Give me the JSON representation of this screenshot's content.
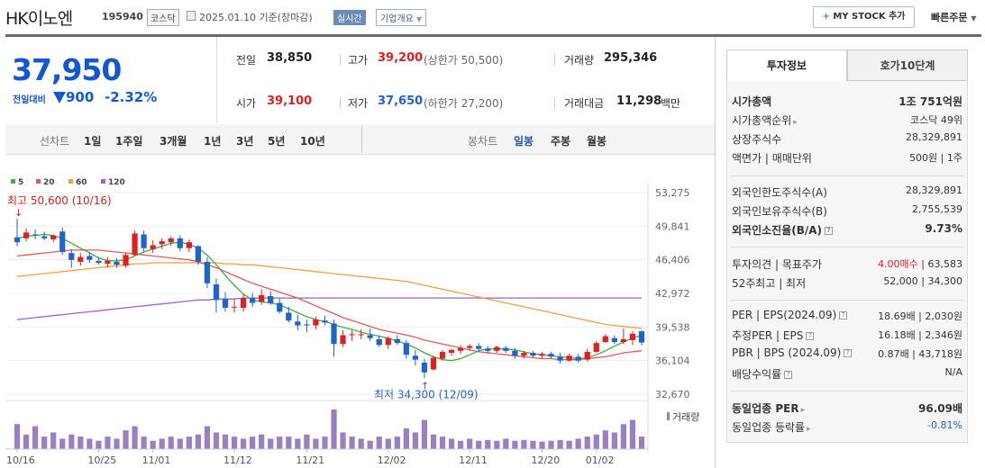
{
  "header": {
    "name": "HK이노엔",
    "code": "195940",
    "market": "코스닥",
    "date": "2025.01.10 기준(장마감)",
    "realtime_label": "실시간",
    "company_label": "기업개요",
    "mystock_label": "MY STOCK 추가",
    "quick_order_label": "빠른주문"
  },
  "price": {
    "current": "37,950",
    "change_label": "전일대비",
    "change": "900",
    "change_pct": "-2.32%",
    "direction": "down"
  },
  "stats": {
    "prev_label": "전일",
    "prev_value": "38,850",
    "high_label": "고가",
    "high_value": "39,200",
    "upper_limit": "(상한가 50,500)",
    "volume_label": "거래량",
    "volume_value": "295,346",
    "open_label": "시가",
    "open_value": "39,100",
    "low_label": "저가",
    "low_value": "37,650",
    "lower_limit": "(하한가 27,200)",
    "amount_label": "거래대금",
    "amount_value": "11,298",
    "amount_unit": "백만"
  },
  "period_bar": {
    "line_chart_label": "선차트",
    "line_periods": [
      "1일",
      "1주일",
      "3개월",
      "1년",
      "3년",
      "5년",
      "10년"
    ],
    "candle_chart_label": "봉차트",
    "candle_periods": [
      "일봉",
      "주봉",
      "월봉"
    ],
    "selected_candle": "일봉"
  },
  "colors": {
    "up": "#e02020",
    "down": "#1f62d0",
    "ma5": "#3fae3f",
    "ma20": "#e25a5a",
    "ma60": "#f0a040",
    "ma120": "#9a64c8",
    "volume": "#9b7fc3"
  },
  "chart_data": {
    "type": "candlestick",
    "legend": [
      "5",
      "20",
      "60",
      "120"
    ],
    "y_ticks": [
      "53,275",
      "49,841",
      "46,406",
      "42,972",
      "39,538",
      "36,104",
      "32,670"
    ],
    "ylim": [
      32670,
      53275
    ],
    "x_ticks": [
      "10/16",
      "10/25",
      "11/01",
      "11/12",
      "11/21",
      "12/02",
      "12/11",
      "12/20",
      "01/02"
    ],
    "max_annotation": "최고 50,600 (10/16)",
    "min_annotation": "최저 34,300 (12/09)",
    "volume_label": "거래량",
    "candles": [
      {
        "o": 48700,
        "h": 50600,
        "l": 47800,
        "c": 48200
      },
      {
        "o": 48600,
        "h": 49600,
        "l": 48300,
        "c": 49200
      },
      {
        "o": 49000,
        "h": 49500,
        "l": 48500,
        "c": 48900
      },
      {
        "o": 48800,
        "h": 49300,
        "l": 48400,
        "c": 48600
      },
      {
        "o": 48500,
        "h": 49000,
        "l": 48200,
        "c": 48900
      },
      {
        "o": 49300,
        "h": 49700,
        "l": 46900,
        "c": 47200
      },
      {
        "o": 47100,
        "h": 47500,
        "l": 45600,
        "c": 46400
      },
      {
        "o": 46200,
        "h": 47100,
        "l": 45800,
        "c": 46700
      },
      {
        "o": 46800,
        "h": 47200,
        "l": 46100,
        "c": 46400
      },
      {
        "o": 46300,
        "h": 46700,
        "l": 45900,
        "c": 46100
      },
      {
        "o": 46000,
        "h": 46700,
        "l": 45600,
        "c": 46300
      },
      {
        "o": 46200,
        "h": 46600,
        "l": 45600,
        "c": 45900
      },
      {
        "o": 45800,
        "h": 47100,
        "l": 45600,
        "c": 46900
      },
      {
        "o": 46900,
        "h": 49400,
        "l": 46800,
        "c": 49100
      },
      {
        "o": 49000,
        "h": 49400,
        "l": 47200,
        "c": 47600
      },
      {
        "o": 47500,
        "h": 48400,
        "l": 47100,
        "c": 47900
      },
      {
        "o": 48000,
        "h": 48600,
        "l": 47500,
        "c": 48300
      },
      {
        "o": 48200,
        "h": 48800,
        "l": 47800,
        "c": 48600
      },
      {
        "o": 48600,
        "h": 48900,
        "l": 47300,
        "c": 47600
      },
      {
        "o": 47600,
        "h": 48500,
        "l": 47200,
        "c": 48200
      },
      {
        "o": 47800,
        "h": 47900,
        "l": 45900,
        "c": 46200
      },
      {
        "o": 46200,
        "h": 46700,
        "l": 43500,
        "c": 44000
      },
      {
        "o": 43900,
        "h": 44500,
        "l": 41000,
        "c": 42300
      },
      {
        "o": 42400,
        "h": 43100,
        "l": 41100,
        "c": 41500
      },
      {
        "o": 41600,
        "h": 42400,
        "l": 41000,
        "c": 41600
      },
      {
        "o": 41500,
        "h": 42900,
        "l": 41100,
        "c": 42500
      },
      {
        "o": 42500,
        "h": 43000,
        "l": 41600,
        "c": 42000
      },
      {
        "o": 42100,
        "h": 43400,
        "l": 41800,
        "c": 42800
      },
      {
        "o": 42700,
        "h": 43200,
        "l": 41800,
        "c": 42000
      },
      {
        "o": 42000,
        "h": 42500,
        "l": 40900,
        "c": 41100
      },
      {
        "o": 41000,
        "h": 41600,
        "l": 40000,
        "c": 40200
      },
      {
        "o": 40100,
        "h": 40800,
        "l": 39200,
        "c": 39700
      },
      {
        "o": 39800,
        "h": 40300,
        "l": 39000,
        "c": 39700
      },
      {
        "o": 39700,
        "h": 40600,
        "l": 39300,
        "c": 40300
      },
      {
        "o": 40200,
        "h": 40700,
        "l": 39700,
        "c": 40000
      },
      {
        "o": 39900,
        "h": 40300,
        "l": 36500,
        "c": 37800
      },
      {
        "o": 37800,
        "h": 39200,
        "l": 37500,
        "c": 38700
      },
      {
        "o": 38700,
        "h": 39200,
        "l": 38100,
        "c": 38800
      },
      {
        "o": 38700,
        "h": 39300,
        "l": 38300,
        "c": 38800
      },
      {
        "o": 38700,
        "h": 39400,
        "l": 38100,
        "c": 38400
      },
      {
        "o": 38300,
        "h": 38700,
        "l": 37500,
        "c": 37700
      },
      {
        "o": 37700,
        "h": 38600,
        "l": 37300,
        "c": 38400
      },
      {
        "o": 38300,
        "h": 38700,
        "l": 37700,
        "c": 37900
      },
      {
        "o": 37900,
        "h": 38200,
        "l": 36300,
        "c": 36700
      },
      {
        "o": 36600,
        "h": 37200,
        "l": 35600,
        "c": 36200
      },
      {
        "o": 35900,
        "h": 36300,
        "l": 34300,
        "c": 34900
      },
      {
        "o": 35200,
        "h": 36600,
        "l": 35100,
        "c": 36400
      },
      {
        "o": 36300,
        "h": 37200,
        "l": 36100,
        "c": 37000
      },
      {
        "o": 36900,
        "h": 37300,
        "l": 36600,
        "c": 37200
      },
      {
        "o": 37100,
        "h": 37700,
        "l": 36800,
        "c": 37400
      },
      {
        "o": 37400,
        "h": 37800,
        "l": 37100,
        "c": 37600
      },
      {
        "o": 37600,
        "h": 37900,
        "l": 37000,
        "c": 37300
      },
      {
        "o": 37300,
        "h": 37600,
        "l": 36800,
        "c": 37100
      },
      {
        "o": 37100,
        "h": 37600,
        "l": 36900,
        "c": 37500
      },
      {
        "o": 37400,
        "h": 37600,
        "l": 36900,
        "c": 37100
      },
      {
        "o": 37100,
        "h": 37400,
        "l": 36300,
        "c": 36600
      },
      {
        "o": 36600,
        "h": 37100,
        "l": 36300,
        "c": 36900
      },
      {
        "o": 36900,
        "h": 37100,
        "l": 36400,
        "c": 36600
      },
      {
        "o": 36600,
        "h": 37000,
        "l": 36300,
        "c": 36800
      },
      {
        "o": 36800,
        "h": 37000,
        "l": 36300,
        "c": 36500
      },
      {
        "o": 36500,
        "h": 36900,
        "l": 35800,
        "c": 36100
      },
      {
        "o": 36100,
        "h": 36800,
        "l": 36000,
        "c": 36600
      },
      {
        "o": 36500,
        "h": 36800,
        "l": 35900,
        "c": 36100
      },
      {
        "o": 36200,
        "h": 37300,
        "l": 36000,
        "c": 37000
      },
      {
        "o": 37000,
        "h": 38100,
        "l": 36900,
        "c": 37900
      },
      {
        "o": 38000,
        "h": 38800,
        "l": 37900,
        "c": 38600
      },
      {
        "o": 38400,
        "h": 38700,
        "l": 37800,
        "c": 38000
      },
      {
        "o": 38000,
        "h": 39400,
        "l": 37800,
        "c": 38300
      },
      {
        "o": 38200,
        "h": 39100,
        "l": 37700,
        "c": 38850
      },
      {
        "o": 39100,
        "h": 39200,
        "l": 37650,
        "c": 37950
      }
    ],
    "ma5": [
      48600,
      48800,
      48900,
      49000,
      48900,
      48600,
      48100,
      47600,
      47100,
      46600,
      46300,
      46300,
      46400,
      46800,
      47200,
      47500,
      47800,
      48100,
      48200,
      48000,
      47600,
      46900,
      45900,
      44800,
      43800,
      42900,
      42300,
      42100,
      42000,
      41800,
      41400,
      41000,
      40600,
      40300,
      40100,
      39800,
      39500,
      39300,
      39000,
      38800,
      38600,
      38400,
      38100,
      37800,
      37400,
      36900,
      36500,
      36200,
      36100,
      36300,
      36700,
      37100,
      37300,
      37300,
      37300,
      37200,
      37000,
      36800,
      36700,
      36600,
      36500,
      36400,
      36300,
      36400,
      36700,
      37100,
      37600,
      38000,
      38400,
      38700
    ],
    "ma20": [
      46800,
      46900,
      47000,
      47100,
      47200,
      47300,
      47400,
      47400,
      47400,
      47400,
      47300,
      47200,
      47100,
      47000,
      46900,
      46800,
      46700,
      46600,
      46500,
      46400,
      46200,
      45900,
      45600,
      45200,
      44800,
      44400,
      44000,
      43700,
      43400,
      43100,
      42800,
      42500,
      42100,
      41700,
      41300,
      40900,
      40500,
      40200,
      39900,
      39600,
      39300,
      39100,
      38900,
      38700,
      38500,
      38200,
      38000,
      37800,
      37600,
      37400,
      37200,
      37000,
      36900,
      36800,
      36700,
      36600,
      36500,
      36400,
      36300,
      36300,
      36200,
      36200,
      36200,
      36300,
      36400,
      36500,
      36700,
      36900,
      37000,
      37100
    ],
    "ma60": [
      44700,
      44800,
      44900,
      45000,
      45100,
      45200,
      45300,
      45400,
      45500,
      45600,
      45700,
      45800,
      45900,
      46000,
      46000,
      46100,
      46100,
      46100,
      46100,
      46100,
      46100,
      46100,
      46100,
      46000,
      46000,
      45900,
      45900,
      45800,
      45700,
      45600,
      45500,
      45400,
      45300,
      45200,
      45100,
      45000,
      44900,
      44800,
      44700,
      44600,
      44500,
      44400,
      44300,
      44200,
      44000,
      43800,
      43600,
      43400,
      43200,
      43000,
      42800,
      42600,
      42400,
      42200,
      42000,
      41800,
      41600,
      41400,
      41200,
      41000,
      40800,
      40600,
      40400,
      40200,
      40000,
      39800,
      39700,
      39600,
      39500,
      39400
    ],
    "ma120": [
      40300,
      40400,
      40500,
      40600,
      40700,
      40800,
      40900,
      41000,
      41100,
      41200,
      41300,
      41400,
      41500,
      41600,
      41700,
      41800,
      41900,
      42000,
      42100,
      42200,
      42300,
      42300,
      42400,
      42400,
      42400,
      42500,
      42500,
      42500,
      42500,
      42500,
      42500,
      42500,
      42500,
      42500,
      42500,
      42500,
      42500,
      42500,
      42500,
      42500,
      42500,
      42500,
      42500,
      42500,
      42500,
      42500,
      42500,
      42500,
      42500,
      42500,
      42500,
      42500,
      42500,
      42500,
      42500,
      42500,
      42500,
      42500,
      42500,
      42500,
      42500,
      42500,
      42500,
      42500,
      42500,
      42500,
      42500,
      42500,
      42500,
      42500
    ],
    "volume": [
      60,
      35,
      55,
      30,
      40,
      25,
      35,
      30,
      25,
      20,
      30,
      25,
      45,
      55,
      30,
      20,
      25,
      30,
      25,
      30,
      35,
      55,
      40,
      35,
      30,
      25,
      30,
      35,
      25,
      30,
      30,
      25,
      35,
      25,
      30,
      95,
      40,
      30,
      25,
      20,
      30,
      25,
      30,
      50,
      40,
      70,
      35,
      30,
      25,
      20,
      25,
      20,
      22,
      20,
      25,
      20,
      22,
      20,
      18,
      20,
      22,
      20,
      25,
      30,
      35,
      45,
      40,
      60,
      70,
      30
    ]
  },
  "right_panel": {
    "tabs": [
      "투자정보",
      "호가10단계"
    ],
    "rows": [
      {
        "k": "시가총액",
        "v": "1조 751억원",
        "bold": true
      },
      {
        "k": "시가총액순위",
        "v": "코스닥 49위",
        "arrow": true
      },
      {
        "k": "상장주식수",
        "v": "28,329,891"
      },
      {
        "k": "액면가 | 매매단위",
        "v": "500원 | 1주"
      },
      {
        "k": "외국인한도주식수(A)",
        "v": "28,329,891"
      },
      {
        "k": "외국인보유주식수(B)",
        "v": "2,755,539"
      },
      {
        "k": "외국인소진율(B/A)",
        "v": "9.73%",
        "bold": true,
        "help": true
      },
      {
        "k": "투자의견 | 목표주가",
        "v_red": "4.00매수",
        "v": "| 63,583"
      },
      {
        "k": "52주최고 | 최저",
        "v": "52,000 | 34,300"
      },
      {
        "k": "PER | EPS(2024.09)",
        "v": "18.69배 | 2,030원",
        "help": true
      },
      {
        "k": "추정PER | EPS",
        "v": "16.18배 | 2,346원",
        "help": true
      },
      {
        "k": "PBR | BPS (2024.09)",
        "v": "0.87배 | 43,718원",
        "help": true
      },
      {
        "k": "배당수익률",
        "v": "N/A",
        "help": true
      },
      {
        "k": "동일업종 PER",
        "v": "96.09배",
        "bold": true,
        "arrow": true
      },
      {
        "k": "동일업종 등락률",
        "v": "-0.81%",
        "arrow": true,
        "blue": true
      }
    ]
  }
}
